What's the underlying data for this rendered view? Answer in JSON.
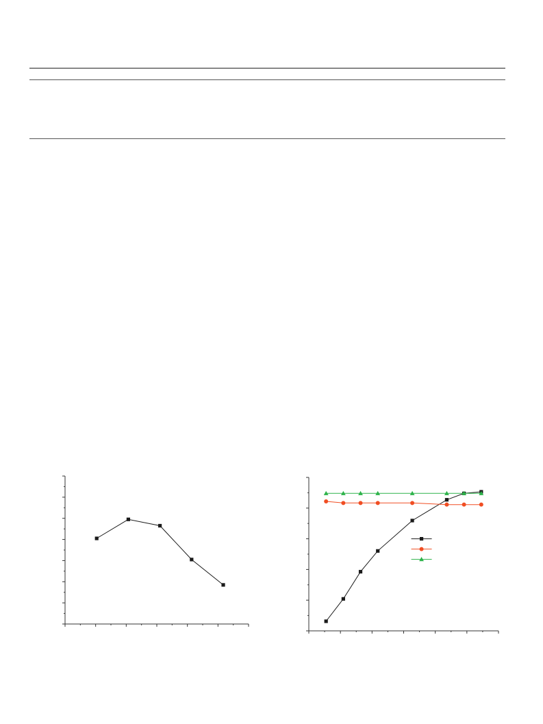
{
  "colors": {
    "axis": "#333333",
    "rules": "#555555",
    "series_black": "#1a1a1a",
    "series_orange": "#f04e23",
    "series_green": "#2db34a"
  },
  "chart_data": [
    {
      "type": "line",
      "x": [
        1,
        2,
        3,
        4,
        5
      ],
      "series": [
        {
          "values": [
            40.5,
            49.5,
            46.5,
            30.5,
            18.5
          ],
          "color": "#1a1a1a",
          "marker": "square"
        }
      ],
      "xlim": [
        0,
        5.8
      ],
      "ylim": [
        0,
        70
      ],
      "xticks_major": 6,
      "xticks_minor": 12,
      "yticks_major": 7,
      "yticks_minor": 14,
      "grid": false,
      "legend": "none"
    },
    {
      "type": "line",
      "x": [
        1,
        2,
        3,
        4,
        6,
        8,
        9,
        10
      ],
      "series": [
        {
          "values": [
            0,
            7,
            15.5,
            22,
            31.5,
            38,
            40,
            40.5
          ],
          "color": "#1a1a1a",
          "marker": "square"
        },
        {
          "values": [
            37.5,
            37,
            37,
            37,
            37,
            36.5,
            36.5,
            36.5
          ],
          "color": "#f04e23",
          "marker": "circle"
        },
        {
          "values": [
            40,
            40,
            40,
            40,
            40,
            40,
            40,
            40
          ],
          "color": "#2db34a",
          "marker": "triangle"
        }
      ],
      "xlim": [
        0,
        11
      ],
      "ylim": [
        -3,
        45
      ],
      "xticks_major": 6,
      "xticks_minor": 12,
      "yticks_major": 5,
      "yticks_minor": 10,
      "grid": false,
      "legend": "center-right"
    }
  ]
}
